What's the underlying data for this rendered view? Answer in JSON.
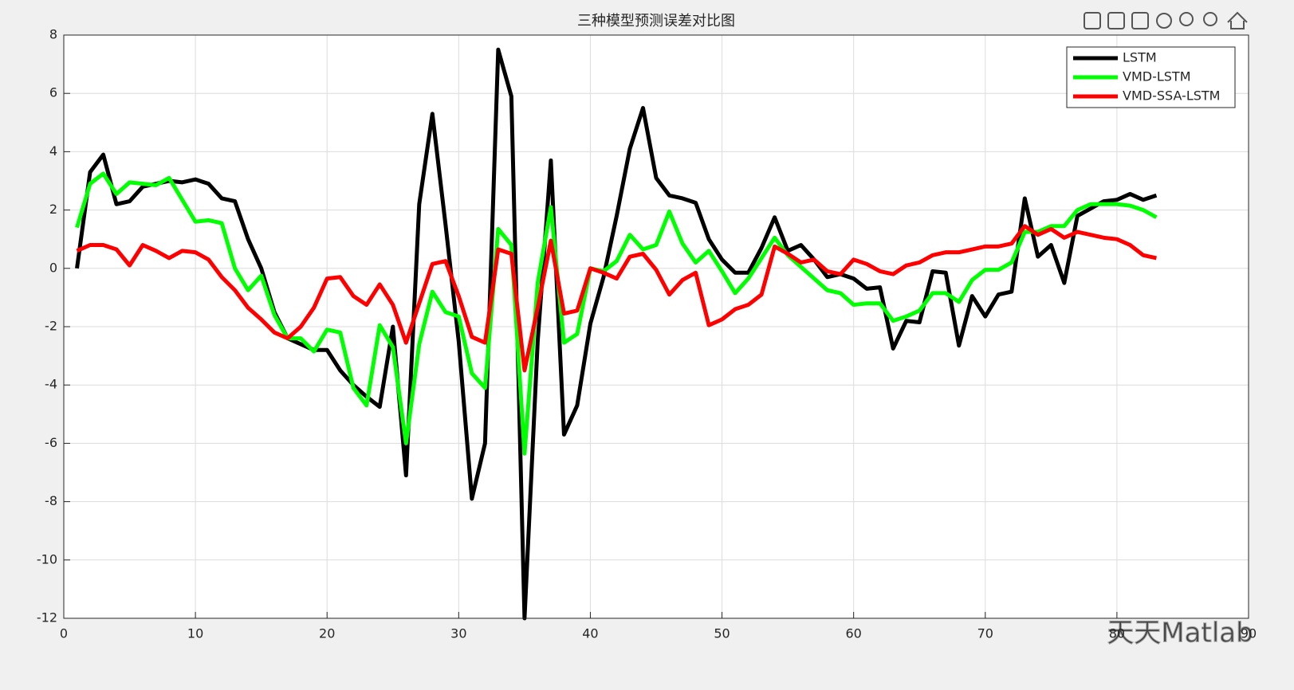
{
  "chart_data": {
    "type": "line",
    "title": "三种模型预测误差对比图",
    "x": [
      1,
      2,
      3,
      4,
      5,
      6,
      7,
      8,
      9,
      10,
      11,
      12,
      13,
      14,
      15,
      16,
      17,
      18,
      19,
      20,
      21,
      22,
      23,
      24,
      25,
      26,
      27,
      28,
      29,
      30,
      31,
      32,
      33,
      34,
      35,
      36,
      37,
      38,
      39,
      40,
      41,
      42,
      43,
      44,
      45,
      46,
      47,
      48,
      49,
      50,
      51,
      52,
      53,
      54,
      55,
      56,
      57,
      58,
      59,
      60,
      61,
      62,
      63,
      64,
      65,
      66,
      67,
      68,
      69,
      70,
      71,
      72,
      73,
      74,
      75,
      76,
      77,
      78,
      79,
      80,
      81,
      82,
      83
    ],
    "series": [
      {
        "name": "LSTM",
        "color": "#000000",
        "values": [
          0,
          3.3,
          3.9,
          2.2,
          2.3,
          2.8,
          2.9,
          3.0,
          2.95,
          3.05,
          2.9,
          2.4,
          2.3,
          1.0,
          0.0,
          -1.5,
          -2.4,
          -2.6,
          -2.8,
          -2.8,
          -3.5,
          -4.0,
          -4.4,
          -4.75,
          -2.0,
          -7.1,
          2.2,
          5.3,
          1.5,
          -2.5,
          -7.9,
          -6.0,
          7.5,
          5.9,
          -12,
          -2.5,
          3.7,
          -5.7,
          -4.7,
          -1.9,
          -0.3,
          1.8,
          4.1,
          5.5,
          3.1,
          2.5,
          2.4,
          2.25,
          1.0,
          0.3,
          -0.15,
          -0.15,
          0.7,
          1.75,
          0.6,
          0.8,
          0.3,
          -0.3,
          -0.2,
          -0.35,
          -0.7,
          -0.65,
          -2.75,
          -1.8,
          -1.85,
          -0.1,
          -0.15,
          -2.65,
          -0.95,
          -1.65,
          -0.9,
          -0.8,
          2.4,
          0.4,
          0.8,
          -0.5,
          1.8,
          2.05,
          2.3,
          2.35,
          2.55,
          2.35,
          2.5
        ]
      },
      {
        "name": "VMD-LSTM",
        "color": "#00ff00",
        "values": [
          1.4,
          2.9,
          3.25,
          2.55,
          2.95,
          2.9,
          2.85,
          3.1,
          2.35,
          1.6,
          1.65,
          1.55,
          0,
          -0.75,
          -0.25,
          -1.6,
          -2.4,
          -2.4,
          -2.85,
          -2.1,
          -2.2,
          -4.1,
          -4.7,
          -1.95,
          -2.7,
          -6.0,
          -2.6,
          -0.8,
          -1.5,
          -1.65,
          -3.6,
          -4.1,
          1.35,
          0.8,
          -6.35,
          -0.5,
          2.1,
          -2.55,
          -2.25,
          0,
          -0.1,
          0.25,
          1.15,
          0.65,
          0.8,
          1.95,
          0.85,
          0.2,
          0.6,
          -0.1,
          -0.85,
          -0.35,
          0.35,
          1.05,
          0.45,
          0.05,
          -0.35,
          -0.75,
          -0.85,
          -1.25,
          -1.2,
          -1.2,
          -1.8,
          -1.65,
          -1.45,
          -0.85,
          -0.85,
          -1.15,
          -0.4,
          -0.05,
          -0.05,
          0.2,
          1.25,
          1.25,
          1.45,
          1.45,
          2.0,
          2.2,
          2.2,
          2.2,
          2.15,
          2.0,
          1.75
        ]
      },
      {
        "name": "VMD-SSA-LSTM",
        "color": "#ff0000",
        "values": [
          0.6,
          0.8,
          0.8,
          0.65,
          0.1,
          0.8,
          0.6,
          0.35,
          0.6,
          0.55,
          0.3,
          -0.3,
          -0.75,
          -1.35,
          -1.75,
          -2.2,
          -2.4,
          -2.0,
          -1.35,
          -0.35,
          -0.3,
          -0.95,
          -1.25,
          -0.55,
          -1.25,
          -2.55,
          -1.2,
          0.15,
          0.25,
          -0.95,
          -2.35,
          -2.55,
          0.65,
          0.5,
          -3.5,
          -1.35,
          0.95,
          -1.55,
          -1.45,
          0,
          -0.15,
          -0.35,
          0.4,
          0.5,
          -0.05,
          -0.9,
          -0.4,
          -0.15,
          -1.95,
          -1.75,
          -1.4,
          -1.25,
          -0.9,
          0.75,
          0.5,
          0.2,
          0.3,
          -0.1,
          -0.2,
          0.3,
          0.15,
          -0.1,
          -0.2,
          0.1,
          0.2,
          0.45,
          0.55,
          0.55,
          0.65,
          0.75,
          0.75,
          0.85,
          1.45,
          1.15,
          1.35,
          1.05,
          1.25,
          1.15,
          1.05,
          1.0,
          0.8,
          0.45,
          0.35
        ]
      }
    ],
    "xlim": [
      0,
      90
    ],
    "xticks": [
      0,
      10,
      20,
      30,
      40,
      50,
      60,
      70,
      80,
      90
    ],
    "ylim": [
      -12,
      8
    ],
    "yticks": [
      -12,
      -10,
      -8,
      -6,
      -4,
      -2,
      0,
      2,
      4,
      6,
      8
    ],
    "grid": true,
    "legend": "upper right",
    "watermark": "天天Matlab"
  }
}
